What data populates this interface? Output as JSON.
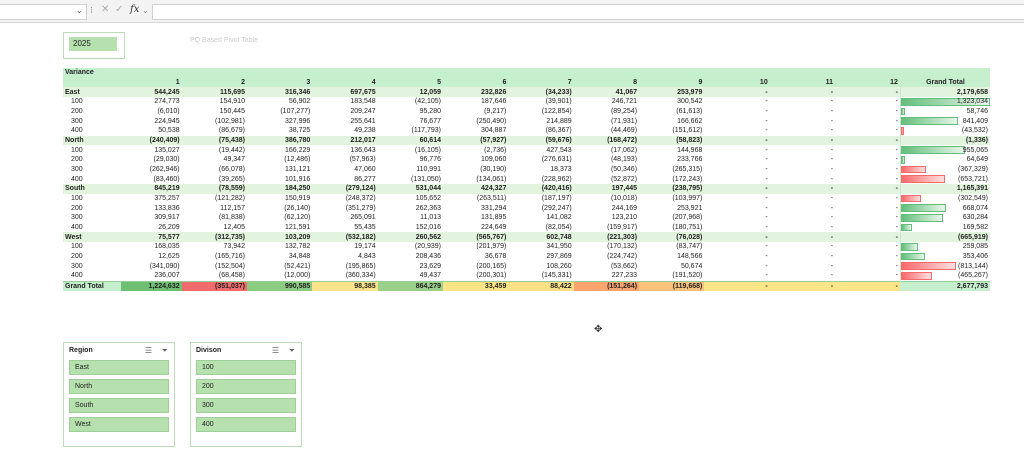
{
  "formula_bar": {
    "fx": "fx",
    "dots": "⁝",
    "cancel": "✕",
    "enter": "✓",
    "chev": "⌄"
  },
  "year_slicer": {
    "value": "2025"
  },
  "caption": "PQ Based Pivot Table",
  "pivot": {
    "title": "Variance",
    "columns": [
      "1",
      "2",
      "3",
      "4",
      "5",
      "6",
      "7",
      "8",
      "9",
      "10",
      "11",
      "12",
      "Grand Total"
    ],
    "rows": [
      {
        "k": "reg",
        "label": "East",
        "vals": [
          "544,245",
          "115,695",
          "316,346",
          "697,675",
          "12,059",
          "232,826",
          "(34,233)",
          "41,067",
          "253,979",
          "-",
          "-",
          "-",
          "2,179,658"
        ]
      },
      {
        "k": "div",
        "label": "100",
        "vals": [
          "274,773",
          "154,910",
          "56,902",
          "183,548",
          "(42,105)",
          "187,646",
          "(39,901)",
          "246,721",
          "300,542",
          "-",
          "-",
          "-",
          "1,323,034"
        ],
        "gv": 1323034
      },
      {
        "k": "div",
        "label": "200",
        "vals": [
          "(6,010)",
          "150,445",
          "(107,277)",
          "209,247",
          "95,280",
          "(9,217)",
          "(122,854)",
          "(89,254)",
          "(61,613)",
          "-",
          "-",
          "-",
          "58,746"
        ],
        "gv": 58746
      },
      {
        "k": "div",
        "label": "300",
        "vals": [
          "224,945",
          "(102,981)",
          "327,996",
          "255,641",
          "76,677",
          "(250,490)",
          "214,889",
          "(71,931)",
          "166,662",
          "-",
          "-",
          "-",
          "841,409"
        ],
        "gv": 841409
      },
      {
        "k": "div",
        "label": "400",
        "vals": [
          "50,538",
          "(86,679)",
          "38,725",
          "49,238",
          "(117,793)",
          "304,887",
          "(86,367)",
          "(44,469)",
          "(151,612)",
          "-",
          "-",
          "-",
          "(43,532)"
        ],
        "gv": -43532
      },
      {
        "k": "reg",
        "label": "North",
        "vals": [
          "(240,409)",
          "(75,438)",
          "386,780",
          "212,017",
          "60,614",
          "(57,927)",
          "(59,676)",
          "(168,472)",
          "(58,823)",
          "-",
          "-",
          "-",
          "(1,336)"
        ]
      },
      {
        "k": "div",
        "label": "100",
        "vals": [
          "135,027",
          "(19,442)",
          "166,229",
          "136,643",
          "(16,105)",
          "(2,736)",
          "427,543",
          "(17,062)",
          "144,968",
          "-",
          "-",
          "-",
          "955,065"
        ],
        "gv": 955065
      },
      {
        "k": "div",
        "label": "200",
        "vals": [
          "(29,030)",
          "49,347",
          "(12,486)",
          "(57,963)",
          "96,776",
          "109,060",
          "(276,631)",
          "(48,193)",
          "233,766",
          "-",
          "-",
          "-",
          "64,649"
        ],
        "gv": 64649
      },
      {
        "k": "div",
        "label": "300",
        "vals": [
          "(262,946)",
          "(66,078)",
          "131,121",
          "47,060",
          "110,991",
          "(30,190)",
          "18,373",
          "(50,346)",
          "(265,315)",
          "-",
          "-",
          "-",
          "(367,329)"
        ],
        "gv": -367329
      },
      {
        "k": "div",
        "label": "400",
        "vals": [
          "(83,460)",
          "(39,265)",
          "101,916",
          "86,277",
          "(131,050)",
          "(134,061)",
          "(228,962)",
          "(52,872)",
          "(172,243)",
          "-",
          "-",
          "-",
          "(653,721)"
        ],
        "gv": -653721
      },
      {
        "k": "reg",
        "label": "South",
        "vals": [
          "845,219",
          "(78,559)",
          "184,250",
          "(279,124)",
          "531,044",
          "424,327",
          "(420,416)",
          "197,445",
          "(238,795)",
          "-",
          "-",
          "-",
          "1,165,391"
        ]
      },
      {
        "k": "div",
        "label": "100",
        "vals": [
          "375,257",
          "(121,282)",
          "150,919",
          "(248,372)",
          "105,652",
          "(263,511)",
          "(187,197)",
          "(10,018)",
          "(103,997)",
          "-",
          "-",
          "-",
          "(302,549)"
        ],
        "gv": -302549
      },
      {
        "k": "div",
        "label": "200",
        "vals": [
          "133,836",
          "112,157",
          "(26,140)",
          "(351,279)",
          "262,363",
          "331,294",
          "(292,247)",
          "244,169",
          "253,921",
          "-",
          "-",
          "-",
          "668,074"
        ],
        "gv": 668074
      },
      {
        "k": "div",
        "label": "300",
        "vals": [
          "309,917",
          "(81,838)",
          "(62,120)",
          "265,091",
          "11,013",
          "131,895",
          "141,082",
          "123,210",
          "(207,968)",
          "-",
          "-",
          "-",
          "630,284"
        ],
        "gv": 630284
      },
      {
        "k": "div",
        "label": "400",
        "vals": [
          "26,209",
          "12,405",
          "121,591",
          "55,435",
          "152,016",
          "224,649",
          "(82,054)",
          "(159,917)",
          "(180,751)",
          "-",
          "-",
          "-",
          "169,582"
        ],
        "gv": 169582
      },
      {
        "k": "reg",
        "label": "West",
        "vals": [
          "75,577",
          "(312,735)",
          "103,209",
          "(532,182)",
          "260,562",
          "(565,767)",
          "602,748",
          "(221,303)",
          "(76,028)",
          "-",
          "-",
          "-",
          "(665,919)"
        ]
      },
      {
        "k": "div",
        "label": "100",
        "vals": [
          "168,035",
          "73,942",
          "132,782",
          "19,174",
          "(20,939)",
          "(201,979)",
          "341,950",
          "(170,132)",
          "(83,747)",
          "-",
          "-",
          "-",
          "259,085"
        ],
        "gv": 259085
      },
      {
        "k": "div",
        "label": "200",
        "vals": [
          "12,625",
          "(165,716)",
          "34,848",
          "4,843",
          "208,436",
          "36,678",
          "297,869",
          "(224,742)",
          "148,566",
          "-",
          "-",
          "-",
          "353,406"
        ],
        "gv": 353406
      },
      {
        "k": "div",
        "label": "300",
        "vals": [
          "(341,090)",
          "(152,504)",
          "(52,421)",
          "(195,865)",
          "23,629",
          "(200,165)",
          "108,260",
          "(53,662)",
          "50,674",
          "-",
          "-",
          "-",
          "(813,144)"
        ],
        "gv": -813144
      },
      {
        "k": "div",
        "label": "400",
        "vals": [
          "236,007",
          "(68,458)",
          "(12,000)",
          "(360,334)",
          "49,437",
          "(200,301)",
          "(145,331)",
          "227,233",
          "(191,520)",
          "-",
          "-",
          "-",
          "(465,267)"
        ],
        "gv": -465267
      }
    ],
    "total": {
      "label": "Grand Total",
      "vals": [
        "1,224,632",
        "(351,037)",
        "990,585",
        "98,385",
        "864,279",
        "33,459",
        "88,422",
        "(151,264)",
        "(119,668)",
        "-",
        "-",
        "-",
        "2,677,793"
      ],
      "colors": [
        "#6fbf73",
        "#f06b6b",
        "#8ccc82",
        "#fde38a",
        "#9ad08a",
        "#fde586",
        "#fde187",
        "#f9a46f",
        "#fbc27b",
        "#fde588",
        "#fde588",
        "#fde588",
        "#c6efce"
      ]
    }
  },
  "slicers": [
    {
      "title": "Region",
      "items": [
        "East",
        "North",
        "South",
        "West"
      ]
    },
    {
      "title": "Divison",
      "items": [
        "100",
        "200",
        "300",
        "400"
      ]
    }
  ],
  "icons": {
    "multiselect": "☰",
    "filter": "⏷"
  }
}
